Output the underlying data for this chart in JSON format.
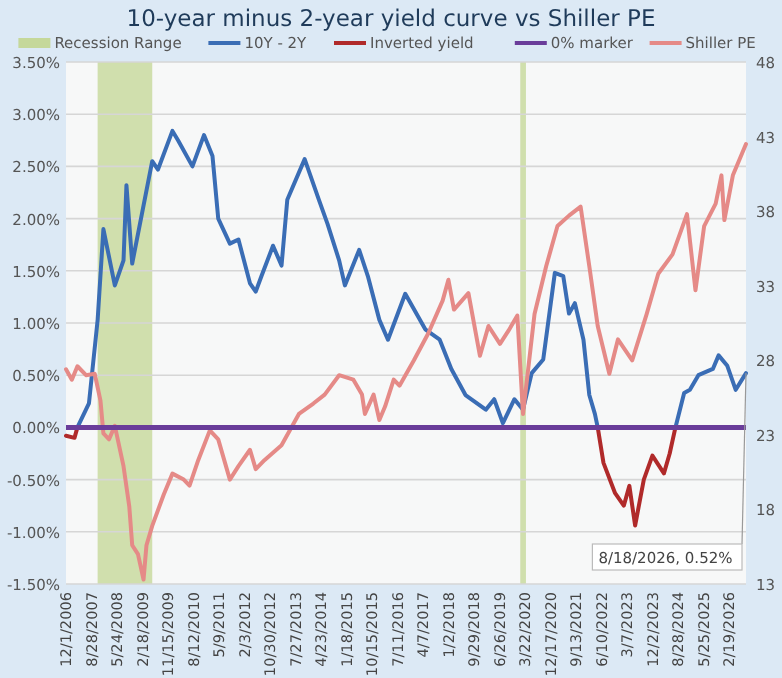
{
  "chart_data": {
    "type": "line",
    "title": "10-year minus 2-year yield curve vs Shiller PE",
    "x": [
      "2006-12",
      "2007-03",
      "2007-04",
      "2007-08",
      "2007-11",
      "2008-01",
      "2008-05",
      "2008-08",
      "2008-09",
      "2008-11",
      "2009-06",
      "2009-08",
      "2010-01",
      "2010-03",
      "2010-08",
      "2010-12",
      "2011-03",
      "2011-05",
      "2011-09",
      "2011-12",
      "2012-04",
      "2012-06",
      "2012-08",
      "2012-12",
      "2013-03",
      "2013-05",
      "2013-11",
      "2014-04",
      "2014-07",
      "2014-11",
      "2015-01",
      "2015-06",
      "2015-09",
      "2016-01",
      "2016-04",
      "2016-10",
      "2017-05",
      "2017-10",
      "2018-02",
      "2018-07",
      "2019-02",
      "2019-05",
      "2019-08",
      "2019-12",
      "2020-03",
      "2020-06",
      "2020-10",
      "2021-02",
      "2021-05",
      "2021-07",
      "2021-09",
      "2021-12",
      "2022-02",
      "2022-04",
      "2022-05",
      "2022-07",
      "2022-11",
      "2023-02",
      "2023-04",
      "2023-06",
      "2023-09",
      "2023-12",
      "2024-04",
      "2024-06",
      "2024-08",
      "2024-11",
      "2025-01",
      "2025-04",
      "2025-09",
      "2025-11",
      "2026-02",
      "2026-05",
      "2026-08-18"
    ],
    "series": [
      {
        "name": "10Y - 2Y",
        "color": "#3a6db5",
        "values": [
          null,
          null,
          0,
          0.23,
          1.03,
          1.9,
          1.36,
          1.6,
          2.32,
          1.57,
          2.55,
          2.47,
          2.84,
          2.75,
          2.5,
          2.8,
          2.6,
          2.0,
          1.76,
          1.8,
          1.38,
          1.3,
          1.45,
          1.74,
          1.55,
          2.18,
          2.57,
          2.18,
          1.95,
          1.6,
          1.36,
          1.7,
          1.45,
          1.03,
          0.84,
          1.28,
          0.94,
          0.84,
          0.56,
          0.31,
          0.17,
          0.27,
          0.04,
          0.27,
          0.17,
          0.52,
          0.65,
          1.48,
          1.45,
          1.09,
          1.19,
          0.84,
          0.31,
          0.13,
          0,
          null,
          null,
          null,
          null,
          null,
          null,
          null,
          null,
          null,
          0,
          0.33,
          0.36,
          0.5,
          0.56,
          0.69,
          0.59,
          0.36,
          0.52
        ]
      },
      {
        "name": "Inverted yield",
        "color": "#b02a2a",
        "values": [
          -0.08,
          -0.1,
          0,
          null,
          null,
          null,
          null,
          null,
          null,
          null,
          null,
          null,
          null,
          null,
          null,
          null,
          null,
          null,
          null,
          null,
          null,
          null,
          null,
          null,
          null,
          null,
          null,
          null,
          null,
          null,
          null,
          null,
          null,
          null,
          null,
          null,
          null,
          null,
          null,
          null,
          null,
          null,
          null,
          null,
          null,
          null,
          null,
          null,
          null,
          null,
          null,
          null,
          null,
          null,
          0,
          -0.34,
          -0.63,
          -0.75,
          -0.56,
          -0.94,
          -0.5,
          -0.27,
          -0.44,
          -0.25,
          0,
          null,
          null,
          null,
          null,
          null,
          null,
          null,
          null
        ]
      },
      {
        "name": "Shiller PE",
        "color": "#e58a87",
        "axis": "y2",
        "x": [
          "2006-12",
          "2007-02",
          "2007-04",
          "2007-07",
          "2007-10",
          "2007-12",
          "2008-01",
          "2008-03",
          "2008-05",
          "2008-08",
          "2008-10",
          "2008-11",
          "2009-01",
          "2009-03",
          "2009-04",
          "2009-06",
          "2009-10",
          "2010-01",
          "2010-05",
          "2010-07",
          "2010-10",
          "2011-02",
          "2011-05",
          "2011-09",
          "2011-12",
          "2012-04",
          "2012-06",
          "2012-09",
          "2013-03",
          "2013-09",
          "2014-02",
          "2014-06",
          "2014-11",
          "2015-04",
          "2015-07",
          "2015-08",
          "2015-11",
          "2016-01",
          "2016-03",
          "2016-06",
          "2016-08",
          "2017-01",
          "2017-06",
          "2017-11",
          "2018-01",
          "2018-03",
          "2018-08",
          "2018-12",
          "2019-03",
          "2019-07",
          "2019-10",
          "2020-01",
          "2020-03",
          "2020-07",
          "2020-11",
          "2021-03",
          "2021-07",
          "2021-11",
          "2022-02",
          "2022-05",
          "2022-09",
          "2022-12",
          "2023-05",
          "2023-10",
          "2024-02",
          "2024-07",
          "2024-12",
          "2025-03",
          "2025-06",
          "2025-10",
          "2025-12",
          "2026-01",
          "2026-04",
          "2026-08-18"
        ],
        "values": [
          27.4,
          26.7,
          27.6,
          27.0,
          27.1,
          25.3,
          23.1,
          22.7,
          23.6,
          20.9,
          18.2,
          15.6,
          15.0,
          13.3,
          15.6,
          16.9,
          19.0,
          20.4,
          20.0,
          19.6,
          21.3,
          23.3,
          22.7,
          20.0,
          20.9,
          22.0,
          20.7,
          21.3,
          22.3,
          24.4,
          25.1,
          25.7,
          27.0,
          26.7,
          25.7,
          24.4,
          25.7,
          24.0,
          24.9,
          26.7,
          26.3,
          28.0,
          29.8,
          32.0,
          33.4,
          31.4,
          32.5,
          28.3,
          30.3,
          29.1,
          30.0,
          31.0,
          24.4,
          31.1,
          34.3,
          37.0,
          37.7,
          38.3,
          34.3,
          30.3,
          27.1,
          29.4,
          28.0,
          31.1,
          33.8,
          35.1,
          37.8,
          32.7,
          37.0,
          38.5,
          40.4,
          37.4,
          40.4,
          42.5
        ]
      }
    ],
    "bands": [
      {
        "axis": "x",
        "from": "2007-11",
        "to": "2009-06",
        "label": "Recession Range",
        "color": "#c5d89a"
      },
      {
        "axis": "x",
        "from": "2020-02",
        "to": "2020-04",
        "color": "#c5d89a"
      }
    ],
    "ref_lines": [
      {
        "axis": "y",
        "value": 0,
        "label": "0% marker",
        "color": "#6a3d9a"
      }
    ],
    "annotations": [
      {
        "text": "8/18/2026, 0.52%",
        "x": "2026-08-18",
        "y": 0.52
      }
    ],
    "xlim": [
      "2006-12-01",
      "2026-08-18"
    ],
    "xticks": [
      {
        "value": "2006-12-01",
        "label": "12/1/2006"
      },
      {
        "value": "2007-08-28",
        "label": "8/28/2007"
      },
      {
        "value": "2008-05-24",
        "label": "5/24/2008"
      },
      {
        "value": "2009-02-18",
        "label": "2/18/2009"
      },
      {
        "value": "2009-11-15",
        "label": "11/15/2009"
      },
      {
        "value": "2010-08-12",
        "label": "8/12/2010"
      },
      {
        "value": "2011-05-09",
        "label": "5/9/2011"
      },
      {
        "value": "2012-02-03",
        "label": "2/3/2012"
      },
      {
        "value": "2012-10-30",
        "label": "10/30/2012"
      },
      {
        "value": "2013-07-27",
        "label": "7/27/2013"
      },
      {
        "value": "2014-04-23",
        "label": "4/23/2014"
      },
      {
        "value": "2015-01-18",
        "label": "1/18/2015"
      },
      {
        "value": "2015-10-15",
        "label": "10/15/2015"
      },
      {
        "value": "2016-07-11",
        "label": "7/11/2016"
      },
      {
        "value": "2017-04-07",
        "label": "4/7/2017"
      },
      {
        "value": "2018-01-02",
        "label": "1/2/2018"
      },
      {
        "value": "2018-09-29",
        "label": "9/29/2018"
      },
      {
        "value": "2019-06-26",
        "label": "6/26/2019"
      },
      {
        "value": "2020-03-22",
        "label": "3/22/2020"
      },
      {
        "value": "2020-12-17",
        "label": "12/17/2020"
      },
      {
        "value": "2021-09-13",
        "label": "9/13/2021"
      },
      {
        "value": "2022-06-10",
        "label": "6/10/2022"
      },
      {
        "value": "2023-03-07",
        "label": "3/7/2023"
      },
      {
        "value": "2023-12-02",
        "label": "12/2/2023"
      },
      {
        "value": "2024-08-28",
        "label": "8/28/2024"
      },
      {
        "value": "2025-05-25",
        "label": "5/25/2025"
      },
      {
        "value": "2026-02-19",
        "label": "2/19/2026"
      }
    ],
    "ylim": [
      -1.5,
      3.5
    ],
    "yticks": [
      {
        "value": -1.5,
        "label": "-1.50%"
      },
      {
        "value": -1,
        "label": "-1.00%"
      },
      {
        "value": -0.5,
        "label": "-0.50%"
      },
      {
        "value": 0,
        "label": "0.00%"
      },
      {
        "value": 0.5,
        "label": "0.50%"
      },
      {
        "value": 1,
        "label": "1.00%"
      },
      {
        "value": 1.5,
        "label": "1.50%"
      },
      {
        "value": 2,
        "label": "2.00%"
      },
      {
        "value": 2.5,
        "label": "2.50%"
      },
      {
        "value": 3,
        "label": "3.00%"
      },
      {
        "value": 3.5,
        "label": "3.50%"
      }
    ],
    "y2lim": [
      13,
      48
    ],
    "y2ticks": [
      13,
      18,
      23,
      28,
      33,
      38,
      43,
      48
    ],
    "grid": "y",
    "legend": "top",
    "marker": "none",
    "line_style": "solid"
  }
}
